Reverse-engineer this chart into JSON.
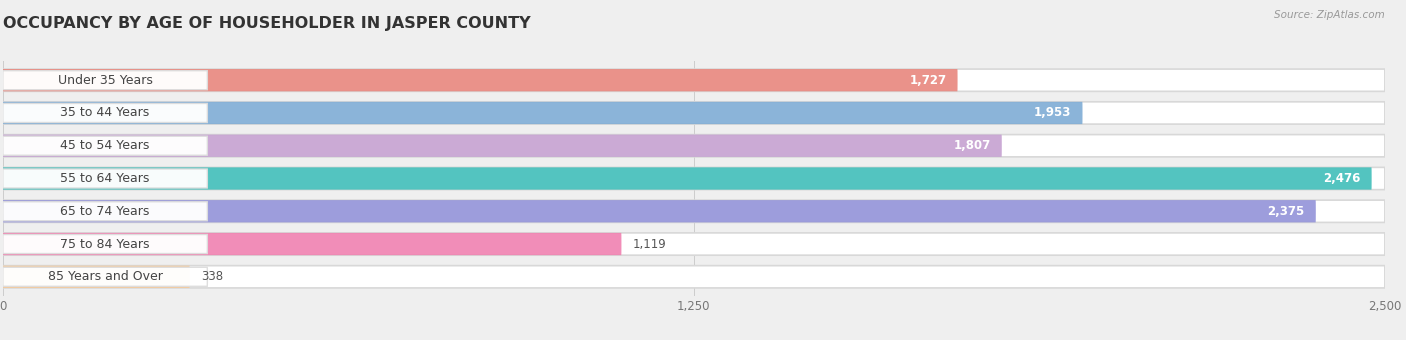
{
  "title": "OCCUPANCY BY AGE OF HOUSEHOLDER IN JASPER COUNTY",
  "source": "Source: ZipAtlas.com",
  "categories": [
    "Under 35 Years",
    "35 to 44 Years",
    "45 to 54 Years",
    "55 to 64 Years",
    "65 to 74 Years",
    "75 to 84 Years",
    "85 Years and Over"
  ],
  "values": [
    1727,
    1953,
    1807,
    2476,
    2375,
    1119,
    338
  ],
  "bar_colors": [
    "#E8837A",
    "#7BAAD4",
    "#C49FD0",
    "#3BBCB8",
    "#9090D8",
    "#F07DAE",
    "#F5C896"
  ],
  "xlim_max": 2500,
  "xticks": [
    0,
    1250,
    2500
  ],
  "background_color": "#efefef",
  "title_fontsize": 11.5,
  "label_fontsize": 9,
  "value_fontsize": 8.5
}
